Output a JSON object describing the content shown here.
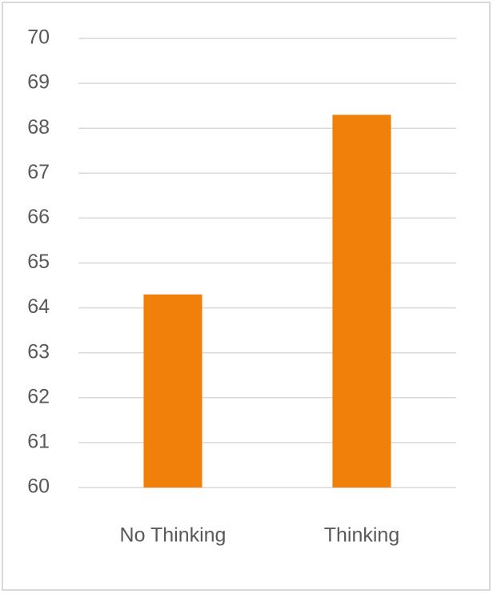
{
  "chart_data": {
    "type": "bar",
    "categories": [
      "No Thinking",
      "Thinking"
    ],
    "values": [
      64.3,
      68.3
    ],
    "color": "#f0800a",
    "ylim": [
      60,
      70
    ],
    "yticks": [
      60,
      61,
      62,
      63,
      64,
      65,
      66,
      67,
      68,
      69,
      70
    ],
    "grid": true
  }
}
